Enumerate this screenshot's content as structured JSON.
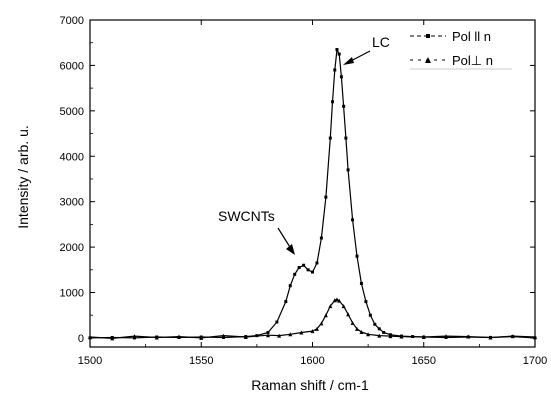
{
  "chart_data": {
    "type": "line",
    "title": "",
    "xlabel": "Raman shift / cm-1",
    "ylabel": "Intensity / arb. u.",
    "xlim": [
      1500,
      1700
    ],
    "ylim": [
      -200,
      7000
    ],
    "xticks": [
      1500,
      1550,
      1600,
      1650,
      1700
    ],
    "yticks": [
      0,
      1000,
      2000,
      3000,
      4000,
      5000,
      6000,
      7000
    ],
    "grid": false,
    "legend_position": "top-right",
    "series": [
      {
        "name": "Pol ll n",
        "marker": "square",
        "x": [
          1500,
          1510,
          1520,
          1530,
          1540,
          1550,
          1560,
          1570,
          1575,
          1580,
          1584,
          1588,
          1590,
          1592,
          1594,
          1596,
          1598,
          1600,
          1602,
          1604,
          1606,
          1608,
          1609,
          1610,
          1611,
          1612,
          1613,
          1614,
          1615,
          1616,
          1618,
          1620,
          1622,
          1624,
          1626,
          1628,
          1630,
          1632,
          1635,
          1640,
          1645,
          1650,
          1660,
          1670,
          1680,
          1690,
          1700
        ],
        "values": [
          0,
          10,
          0,
          20,
          10,
          20,
          10,
          30,
          50,
          120,
          350,
          800,
          1150,
          1400,
          1550,
          1600,
          1500,
          1450,
          1650,
          2200,
          3100,
          4400,
          5200,
          5900,
          6350,
          6250,
          5750,
          5100,
          4400,
          3700,
          2600,
          1800,
          1200,
          800,
          500,
          300,
          200,
          120,
          70,
          40,
          30,
          20,
          10,
          20,
          10,
          30,
          0
        ]
      },
      {
        "name": "Pol⊥ n",
        "marker": "triangle",
        "x": [
          1500,
          1510,
          1520,
          1530,
          1540,
          1550,
          1560,
          1570,
          1580,
          1585,
          1590,
          1595,
          1600,
          1602,
          1604,
          1606,
          1608,
          1610,
          1611,
          1612,
          1614,
          1616,
          1618,
          1620,
          1622,
          1625,
          1630,
          1635,
          1640,
          1650,
          1660,
          1670,
          1680,
          1690,
          1700
        ],
        "values": [
          20,
          -10,
          40,
          10,
          30,
          0,
          50,
          20,
          60,
          50,
          80,
          120,
          150,
          200,
          320,
          500,
          700,
          830,
          850,
          820,
          700,
          520,
          330,
          200,
          130,
          80,
          50,
          40,
          30,
          20,
          40,
          30,
          10,
          40,
          20
        ]
      }
    ],
    "annotations": [
      {
        "text": "LC",
        "x": 1617,
        "y": 6500
      },
      {
        "text": "SWCNTs",
        "x": 1583,
        "y": 2600
      }
    ]
  }
}
